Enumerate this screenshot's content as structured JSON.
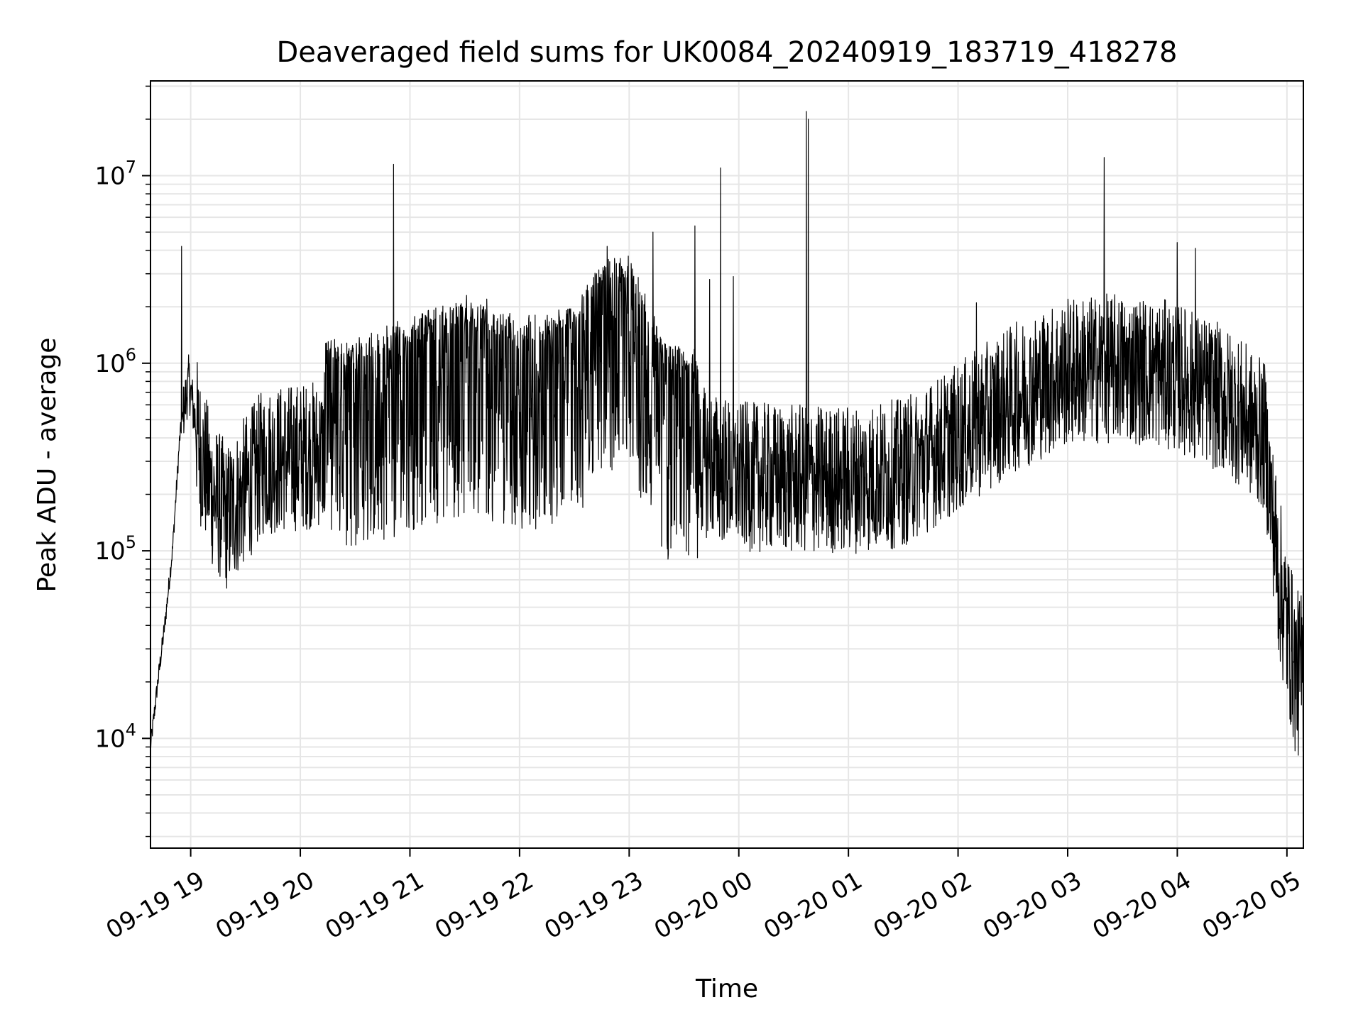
{
  "chart_data": {
    "type": "line",
    "title": "Deaveraged field sums for UK0084_20240919_183719_418278",
    "xlabel": "Time",
    "ylabel": "Peak ADU - average",
    "yscale": "log",
    "ylim": [
      2600,
      32000000
    ],
    "xlim": [
      "2024-09-19T18:38:00",
      "2024-09-20T05:09:00"
    ],
    "grid": true,
    "series_color": "#000000",
    "grid_color": "#e6e6e6",
    "x_ticks": [
      {
        "t": "2024-09-19T19:00:00",
        "label": "09-19 19"
      },
      {
        "t": "2024-09-19T20:00:00",
        "label": "09-19 20"
      },
      {
        "t": "2024-09-19T21:00:00",
        "label": "09-19 21"
      },
      {
        "t": "2024-09-19T22:00:00",
        "label": "09-19 22"
      },
      {
        "t": "2024-09-19T23:00:00",
        "label": "09-19 23"
      },
      {
        "t": "2024-09-20T00:00:00",
        "label": "09-20 00"
      },
      {
        "t": "2024-09-20T01:00:00",
        "label": "09-20 01"
      },
      {
        "t": "2024-09-20T02:00:00",
        "label": "09-20 02"
      },
      {
        "t": "2024-09-20T03:00:00",
        "label": "09-20 03"
      },
      {
        "t": "2024-09-20T04:00:00",
        "label": "09-20 04"
      },
      {
        "t": "2024-09-20T05:00:00",
        "label": "09-20 05"
      }
    ],
    "y_ticks": [
      {
        "value": 10000,
        "base": "10",
        "exp": "4"
      },
      {
        "value": 100000,
        "base": "10",
        "exp": "5"
      },
      {
        "value": 1000000,
        "base": "10",
        "exp": "6"
      },
      {
        "value": 10000000,
        "base": "10",
        "exp": "7"
      }
    ],
    "series": [
      {
        "x": [
          "2024-09-19T18:38:00",
          "2024-09-19T18:42:00",
          "2024-09-19T18:46:00",
          "2024-09-19T18:50:00",
          "2024-09-19T18:54:00",
          "2024-09-19T18:56:00",
          "2024-09-19T18:59:00",
          "2024-09-19T19:05:00",
          "2024-09-19T19:12:00",
          "2024-09-19T19:20:00",
          "2024-09-19T19:40:00",
          "2024-09-19T20:00:00",
          "2024-09-19T20:30:00",
          "2024-09-19T21:00:00",
          "2024-09-19T21:30:00",
          "2024-09-19T22:00:00",
          "2024-09-19T22:30:00",
          "2024-09-19T22:45:00",
          "2024-09-19T23:00:00",
          "2024-09-19T23:20:00",
          "2024-09-19T23:40:00",
          "2024-09-20T00:00:00",
          "2024-09-20T00:30:00",
          "2024-09-20T01:00:00",
          "2024-09-20T01:30:00",
          "2024-09-20T02:00:00",
          "2024-09-20T02:30:00",
          "2024-09-20T03:00:00",
          "2024-09-20T03:30:00",
          "2024-09-20T04:00:00",
          "2024-09-20T04:30:00",
          "2024-09-20T04:48:00",
          "2024-09-20T04:55:00",
          "2024-09-20T05:00:00",
          "2024-09-20T05:05:00",
          "2024-09-20T05:09:00"
        ],
        "y": [
          9000,
          20000,
          42000,
          100000,
          400000,
          550000,
          800000,
          350000,
          200000,
          150000,
          300000,
          320000,
          350000,
          450000,
          550000,
          450000,
          500000,
          900000,
          950000,
          320000,
          300000,
          250000,
          240000,
          240000,
          260000,
          400000,
          650000,
          900000,
          950000,
          850000,
          600000,
          400000,
          80000,
          40000,
          22000,
          22000
        ],
        "spikes": [
          {
            "t": "2024-09-19T18:55:00",
            "value": 4200000
          },
          {
            "t": "2024-09-19T20:51:00",
            "value": 11500000
          },
          {
            "t": "2024-09-19T21:31:00",
            "value": 2300000
          },
          {
            "t": "2024-09-19T21:42:00",
            "value": 2200000
          },
          {
            "t": "2024-09-19T22:48:00",
            "value": 4200000
          },
          {
            "t": "2024-09-19T23:13:00",
            "value": 5000000
          },
          {
            "t": "2024-09-19T23:36:00",
            "value": 5400000
          },
          {
            "t": "2024-09-19T23:44:00",
            "value": 2800000
          },
          {
            "t": "2024-09-19T23:50:00",
            "value": 11000000
          },
          {
            "t": "2024-09-19T23:57:00",
            "value": 2900000
          },
          {
            "t": "2024-09-20T00:37:00",
            "value": 22000000
          },
          {
            "t": "2024-09-20T00:38:00",
            "value": 20000000
          },
          {
            "t": "2024-09-20T02:10:00",
            "value": 2100000
          },
          {
            "t": "2024-09-20T03:20:00",
            "value": 12500000
          },
          {
            "t": "2024-09-20T04:00:00",
            "value": 4400000
          },
          {
            "t": "2024-09-20T04:10:00",
            "value": 4100000
          }
        ]
      }
    ]
  }
}
